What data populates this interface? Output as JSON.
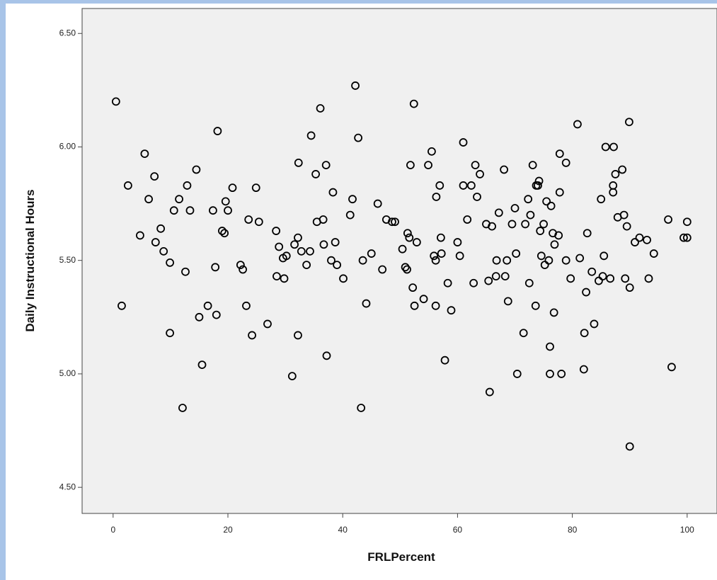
{
  "chart_data": {
    "type": "scatter",
    "x_label": "FRLPercent",
    "y_label": "Daily Instructional Hours",
    "color": "#000000",
    "xlim": [
      -5.4,
      105.2
    ],
    "ylim": [
      4.385,
      6.61
    ],
    "xticks": [
      0,
      20,
      40,
      60,
      80,
      100
    ],
    "yticks": [
      {
        "value": 4.5,
        "label": "4.50"
      },
      {
        "value": 5.0,
        "label": "5.00"
      },
      {
        "value": 5.5,
        "label": "5.50"
      },
      {
        "value": 6.0,
        "label": "6.00"
      },
      {
        "value": 6.5,
        "label": "6.50"
      }
    ],
    "x": [
      0.5,
      1.5,
      2.6,
      4.7,
      5.5,
      6.2,
      7.2,
      7.4,
      8.3,
      8.8,
      9.9,
      9.9,
      10.6,
      11.5,
      12.1,
      12.6,
      12.9,
      13.4,
      14.5,
      15.0,
      15.5,
      16.5,
      17.4,
      17.8,
      18.0,
      18.2,
      19.0,
      19.4,
      19.6,
      20.0,
      20.8,
      22.2,
      22.6,
      23.2,
      23.6,
      24.2,
      24.9,
      25.4,
      26.9,
      28.4,
      28.5,
      28.9,
      29.6,
      29.8,
      30.2,
      31.2,
      31.6,
      32.2,
      32.2,
      32.3,
      32.8,
      33.7,
      34.3,
      34.5,
      35.3,
      35.5,
      36.1,
      36.6,
      36.7,
      37.1,
      37.2,
      38.0,
      38.3,
      38.7,
      39.0,
      40.1,
      41.3,
      41.7,
      42.2,
      42.7,
      43.2,
      43.5,
      44.1,
      45.0,
      46.1,
      46.9,
      47.6,
      48.6,
      49.1,
      50.4,
      50.9,
      51.2,
      51.3,
      51.6,
      51.8,
      52.2,
      52.4,
      52.5,
      52.9,
      54.1,
      54.9,
      55.5,
      55.9,
      56.2,
      56.2,
      56.3,
      56.9,
      57.1,
      57.2,
      57.8,
      58.3,
      58.9,
      60.0,
      60.4,
      61.0,
      61.0,
      61.7,
      62.4,
      62.8,
      63.1,
      63.4,
      63.9,
      65.0,
      65.4,
      65.6,
      66.0,
      66.7,
      66.8,
      67.2,
      68.1,
      68.3,
      68.6,
      68.8,
      69.5,
      70.0,
      70.2,
      70.4,
      71.5,
      71.8,
      72.3,
      72.5,
      72.7,
      73.1,
      73.6,
      73.7,
      74.0,
      74.2,
      74.4,
      74.6,
      75.0,
      75.2,
      75.5,
      75.9,
      76.1,
      76.1,
      76.3,
      76.6,
      76.8,
      76.9,
      77.6,
      77.8,
      77.8,
      78.1,
      78.9,
      78.9,
      79.7,
      80.9,
      81.3,
      82.0,
      82.1,
      82.4,
      82.6,
      83.4,
      83.8,
      84.6,
      85.0,
      85.3,
      85.5,
      85.8,
      86.6,
      87.1,
      87.1,
      87.2,
      87.5,
      87.9,
      88.7,
      89.0,
      89.2,
      89.5,
      89.9,
      90.0,
      90.0,
      90.9,
      91.7,
      93.0,
      93.3,
      94.2,
      96.7,
      97.3,
      99.4,
      100,
      100
    ],
    "values": [
      6.2,
      5.3,
      5.83,
      5.61,
      5.97,
      5.77,
      5.87,
      5.58,
      5.64,
      5.54,
      5.49,
      5.18,
      5.72,
      5.77,
      4.85,
      5.45,
      5.83,
      5.72,
      5.9,
      5.25,
      5.04,
      5.3,
      5.72,
      5.47,
      5.26,
      6.07,
      5.63,
      5.62,
      5.76,
      5.72,
      5.82,
      5.48,
      5.46,
      5.3,
      5.68,
      5.17,
      5.82,
      5.67,
      5.22,
      5.63,
      5.43,
      5.56,
      5.51,
      5.42,
      5.52,
      4.99,
      5.57,
      5.17,
      5.6,
      5.93,
      5.54,
      5.48,
      5.54,
      6.05,
      5.88,
      5.67,
      6.17,
      5.68,
      5.57,
      5.92,
      5.08,
      5.5,
      5.8,
      5.58,
      5.48,
      5.42,
      5.7,
      5.77,
      6.27,
      6.04,
      4.85,
      5.5,
      5.31,
      5.53,
      5.75,
      5.46,
      5.68,
      5.67,
      5.67,
      5.55,
      5.47,
      5.46,
      5.62,
      5.6,
      5.92,
      5.38,
      6.19,
      5.3,
      5.58,
      5.33,
      5.92,
      5.98,
      5.52,
      5.5,
      5.3,
      5.78,
      5.83,
      5.6,
      5.53,
      5.06,
      5.4,
      5.28,
      5.58,
      5.52,
      6.02,
      5.83,
      5.68,
      5.83,
      5.4,
      5.92,
      5.78,
      5.88,
      5.66,
      5.41,
      4.92,
      5.65,
      5.43,
      5.5,
      5.71,
      5.9,
      5.43,
      5.5,
      5.32,
      5.66,
      5.73,
      5.53,
      5.0,
      5.18,
      5.66,
      5.77,
      5.4,
      5.7,
      5.92,
      5.3,
      5.83,
      5.83,
      5.85,
      5.63,
      5.52,
      5.66,
      5.48,
      5.76,
      5.5,
      5.12,
      5.0,
      5.74,
      5.62,
      5.27,
      5.57,
      5.61,
      5.97,
      5.8,
      5.0,
      5.5,
      5.93,
      5.42,
      6.1,
      5.51,
      5.02,
      5.18,
      5.36,
      5.62,
      5.45,
      5.22,
      5.41,
      5.77,
      5.43,
      5.52,
      6.0,
      5.42,
      5.8,
      5.83,
      6.0,
      5.88,
      5.69,
      5.9,
      5.7,
      5.42,
      5.65,
      6.11,
      5.38,
      4.68,
      5.58,
      5.6,
      5.59,
      5.42,
      5.53,
      5.68,
      5.03,
      5.6,
      5.67,
      5.6
    ]
  }
}
